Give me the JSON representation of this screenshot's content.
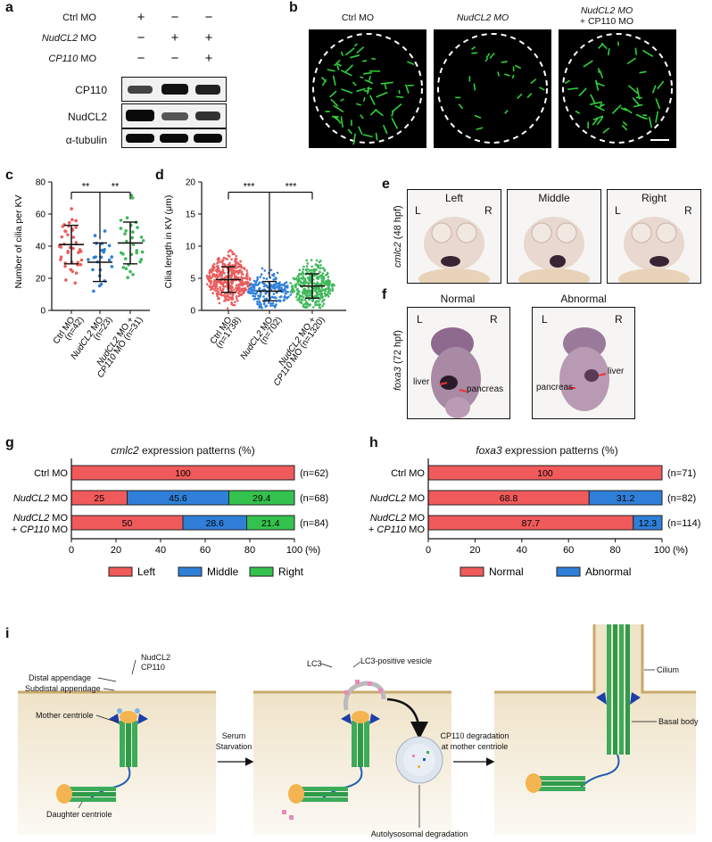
{
  "panel_labels": {
    "a": "a",
    "b": "b",
    "c": "c",
    "d": "d",
    "e": "e",
    "f": "f",
    "g": "g",
    "h": "h",
    "i": "i"
  },
  "panel_a": {
    "rows": [
      {
        "label": "Ctrl MO",
        "italic": false,
        "marks": [
          "+",
          "−",
          "−"
        ]
      },
      {
        "label": "NudCL2",
        "suffix": " MO",
        "italic": true,
        "marks": [
          "−",
          "+",
          "+"
        ]
      },
      {
        "label": "CP110",
        "suffix": " MO",
        "italic": true,
        "marks": [
          "−",
          "−",
          "+"
        ]
      }
    ],
    "blots": [
      "CP110",
      "NudCL2",
      "α-tubulin"
    ],
    "band_intensity": [
      [
        0.55,
        0.85,
        0.7
      ],
      [
        0.9,
        0.55,
        0.65
      ],
      [
        0.9,
        0.9,
        0.9
      ]
    ]
  },
  "panel_b": {
    "titles": [
      "Ctrl MO",
      "NudCL2 MO",
      "NudCL2 MO",
      "+ CP110 MO"
    ]
  },
  "panel_c": {
    "ylabel": "Number of cilia per KV",
    "yticks": [
      "0",
      "20",
      "40",
      "60",
      "80"
    ],
    "sig": [
      "**",
      "**"
    ],
    "xlabels": [
      [
        "Ctrl MO",
        "(n=42)"
      ],
      [
        "NudCL2 MO",
        "(n=23)"
      ],
      [
        "NudCL2 MO +",
        "CP110 MO (n=31)"
      ]
    ]
  },
  "panel_d": {
    "ylabel": "Cilia length in KV (μm)",
    "yticks": [
      "0",
      "5",
      "10",
      "15",
      "20"
    ],
    "sig": [
      "***",
      "***"
    ],
    "xlabels": [
      [
        "Ctrl MO",
        "(n=1738)"
      ],
      [
        "NudCL2 MO",
        "(n=702)"
      ],
      [
        "NudCL2 MO +",
        "CP110 MO (n=1320)"
      ]
    ]
  },
  "panel_e": {
    "side_label": "cmlc2 (48 hpf)",
    "titles": [
      "Left",
      "Middle",
      "Right"
    ],
    "L": "L",
    "R": "R"
  },
  "panel_f": {
    "side_label": "foxa3 (72 hpf)",
    "titles": [
      "Normal",
      "Abnormal"
    ],
    "L": "L",
    "R": "R",
    "annotations": {
      "liver": "liver",
      "pancreas": "pancreas"
    }
  },
  "chart_data": [
    {
      "type": "scatter",
      "title": "",
      "ylabel": "Number of cilia per KV",
      "ylim": [
        0,
        80
      ],
      "categories": [
        "Ctrl MO (n=42)",
        "NudCL2 MO (n=23)",
        "NudCL2 MO + CP110 MO (n=31)"
      ],
      "mean": [
        41,
        30,
        42
      ],
      "sd": [
        12,
        12,
        13
      ],
      "colors": [
        "#ea5d5d",
        "#2f7fd9",
        "#3fb85a"
      ]
    },
    {
      "type": "scatter",
      "title": "",
      "ylabel": "Cilia length in KV (μm)",
      "ylim": [
        0,
        20
      ],
      "categories": [
        "Ctrl MO (n=1738)",
        "NudCL2 MO (n=702)",
        "NudCL2 MO + CP110 MO (n=1320)"
      ],
      "mean": [
        4.8,
        3.0,
        3.8
      ],
      "sd": [
        2.0,
        1.5,
        1.9
      ],
      "colors": [
        "#ea5d5d",
        "#2f7fd9",
        "#3fb85a"
      ]
    },
    {
      "type": "bar",
      "title": "cmlc2 expression patterns (%)",
      "categories": [
        "Ctrl MO",
        "NudCL2 MO",
        "NudCL2 MO + CP110 MO"
      ],
      "n": [
        "(n=62)",
        "(n=68)",
        "(n=84)"
      ],
      "series": [
        {
          "name": "Left",
          "values": [
            100,
            25,
            50
          ],
          "color": "#f05a5a"
        },
        {
          "name": "Middle",
          "values": [
            0,
            45.6,
            28.6
          ],
          "color": "#2f7fd9"
        },
        {
          "name": "Right",
          "values": [
            0,
            29.4,
            21.4
          ],
          "color": "#34c24e"
        }
      ],
      "labels": [
        [
          "100",
          "",
          ""
        ],
        [
          "25",
          "45.6",
          "29.4"
        ],
        [
          "50",
          "28.6",
          "21.4"
        ]
      ],
      "xticks": [
        "0",
        "20",
        "40",
        "60",
        "80",
        "100"
      ],
      "unit": "(%)"
    },
    {
      "type": "bar",
      "title": "foxa3 expression patterns (%)",
      "categories": [
        "Ctrl MO",
        "NudCL2 MO",
        "NudCL2 MO + CP110 MO"
      ],
      "n": [
        "(n=71)",
        "(n=82)",
        "(n=114)"
      ],
      "series": [
        {
          "name": "Normal",
          "values": [
            100,
            68.8,
            87.7
          ],
          "color": "#f05a5a"
        },
        {
          "name": "Abnormal",
          "values": [
            0,
            31.2,
            12.3
          ],
          "color": "#2f7fd9"
        }
      ],
      "labels": [
        [
          "100",
          ""
        ],
        [
          "68.8",
          "31.2"
        ],
        [
          "87.7",
          "12.3"
        ]
      ],
      "xticks": [
        "0",
        "20",
        "40",
        "60",
        "80",
        "100"
      ],
      "unit": "(%)"
    }
  ],
  "panel_g": {
    "title_italic": "cmlc2",
    "title_rest": " expression patterns (%)"
  },
  "panel_h": {
    "title_italic": "foxa3",
    "title_rest": " expression patterns (%)"
  },
  "panel_i": {
    "labels": {
      "nudcl2": "NudCL2",
      "cp110": "CP110",
      "distal": "Distal appendage",
      "subdistal": "Subdistal appendage",
      "mother": "Mother centriole",
      "daughter": "Daughter centriole",
      "serum1": "Serum",
      "serum2": "Starvation",
      "lc3": "LC3",
      "lc3vesicle": "LC3-positive vesicle",
      "autolys": "Autolysosomal degradation",
      "cpdeg1": "CP110 degradation",
      "cpdeg2": "at mother centriole",
      "cilium": "Cilium",
      "basal": "Basal body"
    }
  },
  "colors": {
    "red": "#f05a5a",
    "blue": "#2f7fd9",
    "green": "#34c24e",
    "cell": "#efe3c8",
    "membrane": "#c9a96b"
  }
}
